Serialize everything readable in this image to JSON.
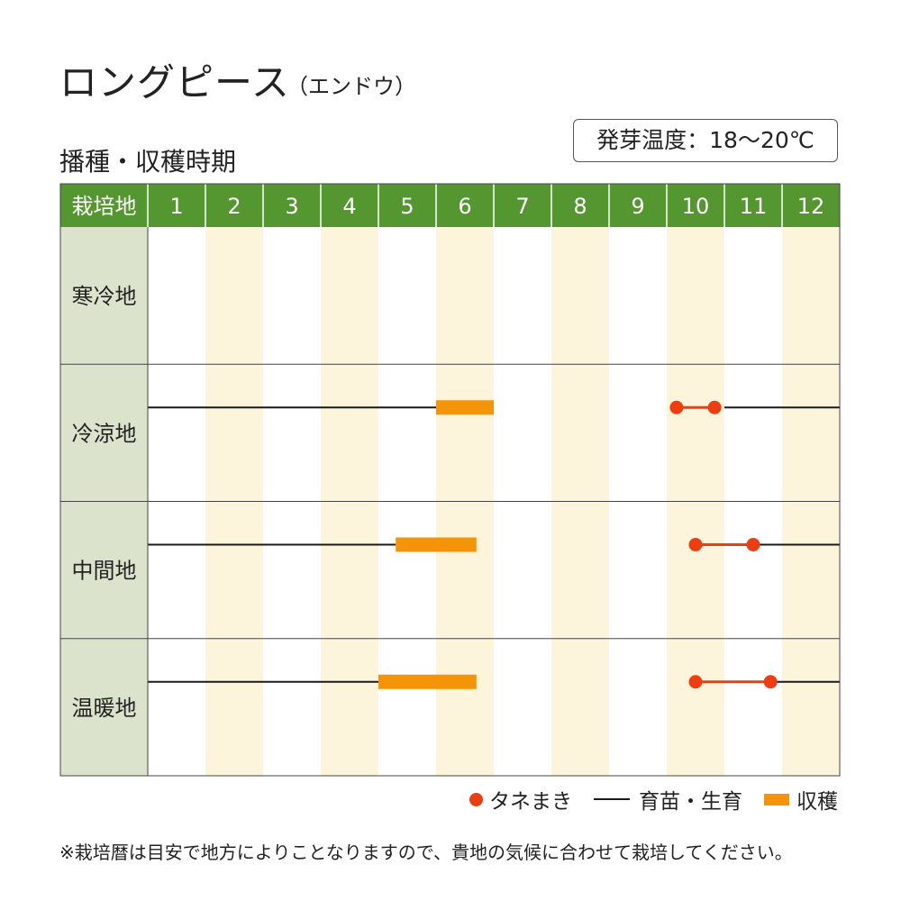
{
  "title": "ロングピース",
  "subtitle": "（エンドウ）",
  "germination": "発芽温度：18～20℃",
  "section_title": "播種・収穫時期",
  "colors": {
    "header_green": "#54962f",
    "region_bg": "#dbe3cc",
    "stripe": "#fdf4dc",
    "sowing": "#ee3d11",
    "growth": "#1a1a1a",
    "harvest": "#f59408"
  },
  "chart_data": {
    "type": "table",
    "header_label": "栽培地",
    "months": [
      "1",
      "2",
      "3",
      "4",
      "5",
      "6",
      "7",
      "8",
      "9",
      "10",
      "11",
      "12"
    ],
    "regions": [
      {
        "name": "寒冷地",
        "growth": [],
        "harvest": [],
        "sowing": []
      },
      {
        "name": "冷涼地",
        "growth": [
          [
            0,
            5.0
          ],
          [
            10.0,
            12
          ]
        ],
        "harvest": [
          [
            5.0,
            6.0
          ]
        ],
        "sowing": [
          [
            9.17,
            9.83
          ]
        ]
      },
      {
        "name": "中間地",
        "growth": [
          [
            0,
            4.3
          ],
          [
            10.3,
            12
          ]
        ],
        "harvest": [
          [
            4.3,
            5.7
          ]
        ],
        "sowing": [
          [
            9.5,
            10.5
          ]
        ]
      },
      {
        "name": "温暖地",
        "growth": [
          [
            0,
            4.0
          ],
          [
            10.6,
            12
          ]
        ],
        "harvest": [
          [
            4.0,
            5.7
          ]
        ],
        "sowing": [
          [
            9.5,
            10.8
          ]
        ]
      }
    ],
    "legend": [
      {
        "type": "sowing",
        "label": "タネまき"
      },
      {
        "type": "growth",
        "label": "育苗・生育"
      },
      {
        "type": "harvest",
        "label": "収穫"
      }
    ]
  },
  "note": "※栽培暦は目安で地方によりことなりますので、貴地の気候に合わせて栽培してください。"
}
